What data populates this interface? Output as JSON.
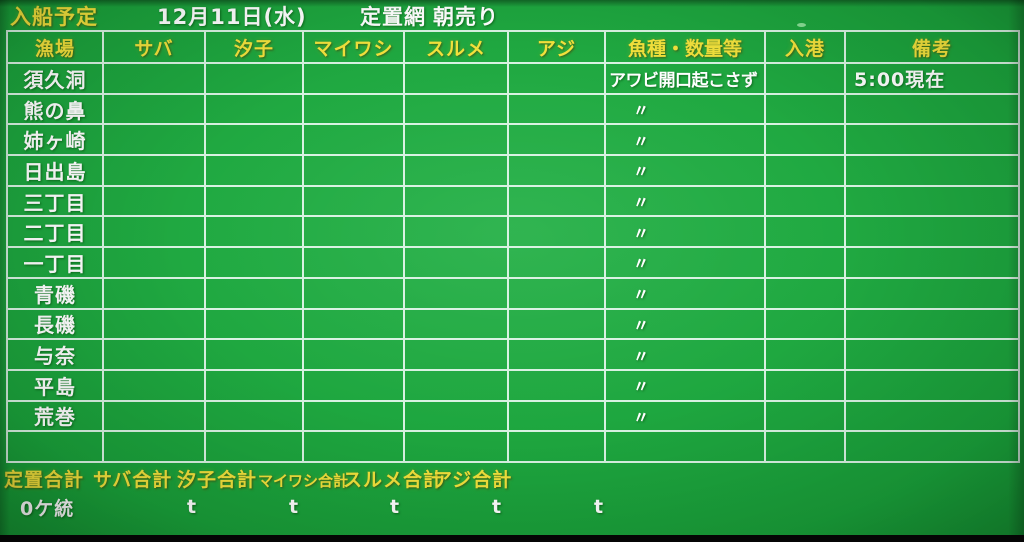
{
  "header": {
    "title": "入船予定",
    "date": "12月11日(水)",
    "net_type": "定置網",
    "sale_type": "朝売り"
  },
  "table": {
    "columns": [
      "漁場",
      "サバ",
      "汐子",
      "マイワシ",
      "スルメ",
      "アジ",
      "魚種・数量等",
      "入港",
      "備考"
    ],
    "rows": [
      {
        "area": "須久洞",
        "fish_info": "アワビ開口起こさず",
        "remark": "5:00現在"
      },
      {
        "area": "熊の鼻",
        "fish_info": "〃"
      },
      {
        "area": "姉ヶ崎",
        "fish_info": "〃"
      },
      {
        "area": "日出島",
        "fish_info": "〃"
      },
      {
        "area": "三丁目",
        "fish_info": "〃"
      },
      {
        "area": "二丁目",
        "fish_info": "〃"
      },
      {
        "area": "一丁目",
        "fish_info": "〃"
      },
      {
        "area": "青磯",
        "fish_info": "〃"
      },
      {
        "area": "長磯",
        "fish_info": "〃"
      },
      {
        "area": "与奈",
        "fish_info": "〃"
      },
      {
        "area": "平島",
        "fish_info": "〃"
      },
      {
        "area": "荒巻",
        "fish_info": "〃"
      },
      {
        "area": ""
      }
    ]
  },
  "footer": {
    "totals_labels": [
      "定置合計",
      "サバ合計",
      "汐子合計",
      "マイワシ合計",
      "スルメ合計",
      "アジ合計"
    ],
    "fleet_total": "0ケ統",
    "tonnage_values": [
      "t",
      "t",
      "t",
      "t",
      "t"
    ]
  },
  "colors": {
    "screen_green": "#1aa23a",
    "grid_line": "#d8f2e2",
    "accent_yellow": "#f2e13c",
    "text_white": "#ffffff"
  }
}
